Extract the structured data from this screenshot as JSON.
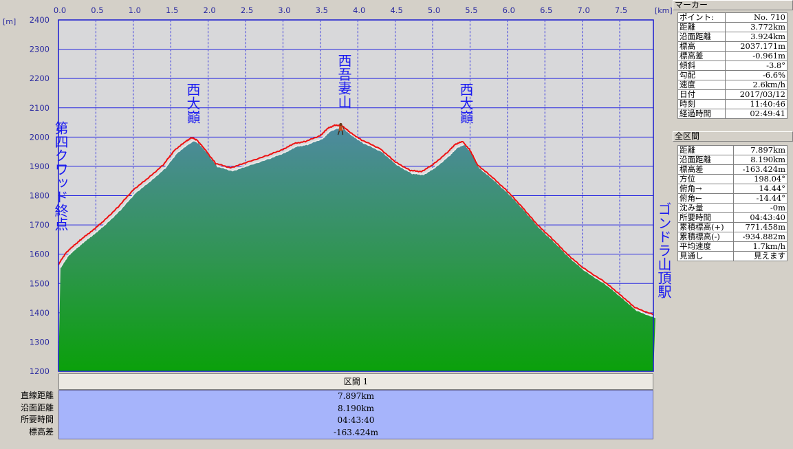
{
  "chart_data": {
    "type": "area",
    "x_unit": "[km]",
    "y_unit": "[m]",
    "xlim": [
      0,
      7.95
    ],
    "ylim": [
      1200,
      2400
    ],
    "x_ticks": [
      "0.0",
      "0.5",
      "1.0",
      "1.5",
      "2.0",
      "2.5",
      "3.0",
      "3.5",
      "4.0",
      "4.5",
      "5.0",
      "5.5",
      "6.0",
      "6.5",
      "7.0",
      "7.5"
    ],
    "y_ticks": [
      "2400",
      "2300",
      "2200",
      "2100",
      "2000",
      "1900",
      "1800",
      "1700",
      "1600",
      "1500",
      "1400",
      "1300",
      "1200"
    ],
    "grid": true,
    "series": [
      {
        "name": "",
        "x": [
          0.0,
          0.1,
          0.2,
          0.3,
          0.45,
          0.6,
          0.8,
          1.0,
          1.2,
          1.4,
          1.55,
          1.7,
          1.78,
          1.85,
          1.95,
          2.1,
          2.3,
          2.5,
          2.8,
          3.0,
          3.15,
          3.3,
          3.5,
          3.6,
          3.7,
          3.8,
          3.9,
          4.05,
          4.3,
          4.5,
          4.7,
          4.85,
          5.0,
          5.2,
          5.3,
          5.4,
          5.5,
          5.6,
          5.8,
          6.0,
          6.2,
          6.4,
          6.6,
          6.8,
          7.0,
          7.3,
          7.5,
          7.7,
          7.95
        ],
        "y": [
          1565,
          1605,
          1628,
          1650,
          1680,
          1712,
          1762,
          1820,
          1860,
          1905,
          1955,
          1985,
          1998,
          1990,
          1960,
          1910,
          1895,
          1912,
          1938,
          1958,
          1978,
          1985,
          2005,
          2030,
          2041,
          2037,
          2015,
          1990,
          1960,
          1915,
          1886,
          1882,
          1905,
          1948,
          1975,
          1985,
          1955,
          1905,
          1862,
          1815,
          1760,
          1700,
          1652,
          1600,
          1555,
          1505,
          1463,
          1418,
          1393
        ]
      }
    ],
    "annotations": [
      {
        "text": "第四クワッド終点",
        "x": 0.0
      },
      {
        "text": "西大巓",
        "x": 1.8
      },
      {
        "text": "西吾妻山",
        "x": 3.72
      },
      {
        "text": "西大巓",
        "x": 5.4
      },
      {
        "text": "ゴンドラ山頂駅",
        "x": 7.95
      }
    ],
    "marker_x": 3.772,
    "colors": {
      "profile_line": "#ee1111",
      "grid": "#2222dd",
      "plot_bg": "#d8d8da",
      "fill_top": "#4e8aa0",
      "fill_bottom": "#0aa00a"
    }
  },
  "panel": {
    "marker_title": "マーカー",
    "marker_rows": [
      [
        "ポイント:",
        "No. 710"
      ],
      [
        "距離",
        "3.772km"
      ],
      [
        "沿面距離",
        "3.924km"
      ],
      [
        "標高",
        "2037.171m"
      ],
      [
        "標高差",
        "-0.961m"
      ],
      [
        "傾斜",
        "-3.8°"
      ],
      [
        "勾配",
        "-6.6%"
      ],
      [
        "速度",
        "2.6km/h"
      ],
      [
        "日付",
        "2017/03/12"
      ],
      [
        "時刻",
        "11:40:46"
      ],
      [
        "経過時間",
        "02:49:41"
      ]
    ],
    "total_title": "全区間",
    "total_rows": [
      [
        "距離",
        "7.897km"
      ],
      [
        "沿面距離",
        "8.190km"
      ],
      [
        "標高差",
        "-163.424m"
      ],
      [
        "方位",
        "198.04°"
      ],
      [
        "俯角→",
        "14.44°"
      ],
      [
        "俯角←",
        "-14.44°"
      ],
      [
        "沈み量",
        "-0m"
      ],
      [
        "所要時間",
        "04:43:40"
      ],
      [
        "累積標高(+)",
        "771.458m"
      ],
      [
        "累積標高(-)",
        "-934.882m"
      ],
      [
        "平均速度",
        "1.7km/h"
      ],
      [
        "見通し",
        "見えます"
      ]
    ]
  },
  "section": {
    "header": "区間 1",
    "labels": [
      "直線距離",
      "沿面距離",
      "所要時間",
      "標高差"
    ],
    "values": [
      "7.897km",
      "8.190km",
      "04:43:40",
      "-163.424m"
    ]
  }
}
